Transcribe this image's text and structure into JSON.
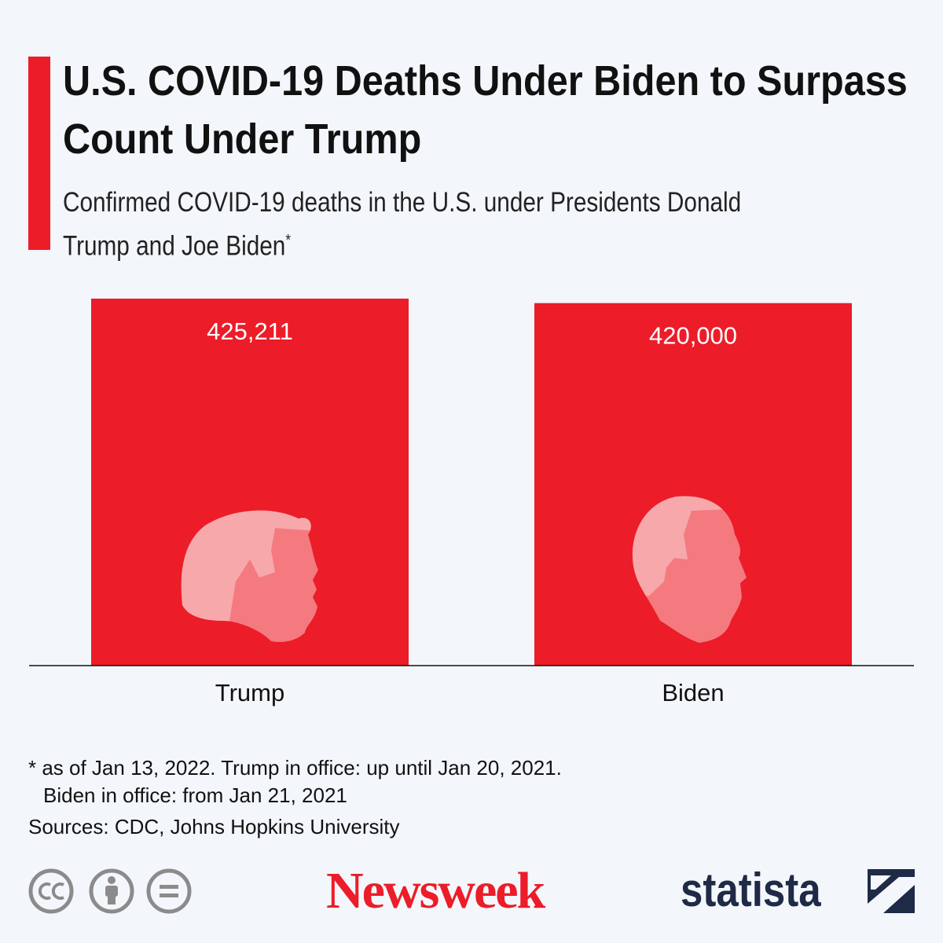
{
  "chart_data": {
    "type": "bar",
    "title": "U.S. COVID-19 Deaths Under Biden to Surpass Count Under Trump",
    "subtitle": "Confirmed COVID-19 deaths in the U.S. under Presidents Donald Trump and Joe Biden",
    "subtitle_marker": "*",
    "categories": [
      "Trump",
      "Biden"
    ],
    "values": [
      425211,
      420000
    ],
    "value_labels": [
      "425,211",
      "420,000"
    ],
    "color": "#ec1c29",
    "footnote_lines": [
      "* as of Jan 13, 2022. Trump in office: up until Jan 20, 2021.",
      "Biden in office: from Jan 21, 2021"
    ],
    "source": "Sources: CDC, Johns Hopkins University",
    "publisher": "Newsweek",
    "brand": "statista"
  }
}
